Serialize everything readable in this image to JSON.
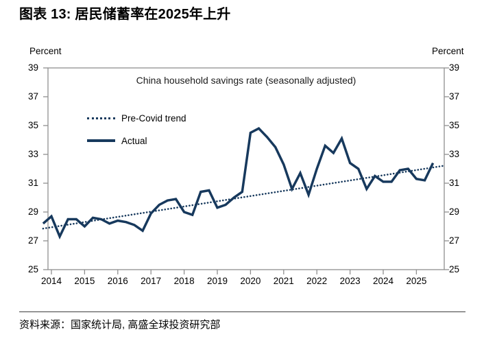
{
  "page_title": "图表 13: 居民储蓄率在2025年上升",
  "source_text": "资料来源：国家统计局, 高盛全球投资研究部",
  "axis_unit_left": "Percent",
  "axis_unit_right": "Percent",
  "chart_data": {
    "type": "line",
    "title": "China household savings rate (seasonally adjusted)",
    "ylabel": "Percent",
    "xlabel": "",
    "ylim": [
      25,
      39
    ],
    "yticks": [
      39,
      37,
      35,
      33,
      31,
      29,
      27,
      25
    ],
    "xticks": [
      2014,
      2015,
      2016,
      2017,
      2018,
      2019,
      2020,
      2021,
      2022,
      2023,
      2024,
      2025
    ],
    "grid": false,
    "legend_position": "upper-left-inside",
    "line_color": "#17395D",
    "axis_color": "#8f8f8f",
    "series": [
      {
        "name": "Pre-Covid trend",
        "style": "dotted",
        "x": [
          2013.75,
          2025.8
        ],
        "values": [
          27.85,
          32.2
        ]
      },
      {
        "name": "Actual",
        "style": "solid",
        "x_start": 2013.75,
        "x_step": 0.25,
        "values": [
          28.2,
          28.7,
          27.3,
          28.5,
          28.5,
          28.0,
          28.6,
          28.5,
          28.2,
          28.4,
          28.3,
          28.1,
          27.7,
          28.9,
          29.5,
          29.8,
          29.9,
          29.0,
          28.8,
          30.4,
          30.5,
          29.3,
          29.5,
          30.0,
          30.4,
          34.5,
          34.8,
          34.2,
          33.5,
          32.3,
          30.6,
          31.7,
          30.2,
          32.0,
          33.6,
          33.1,
          34.1,
          32.4,
          32.0,
          30.6,
          31.5,
          31.1,
          31.1,
          31.9,
          32.0,
          31.3,
          31.2,
          32.4
        ]
      }
    ]
  }
}
